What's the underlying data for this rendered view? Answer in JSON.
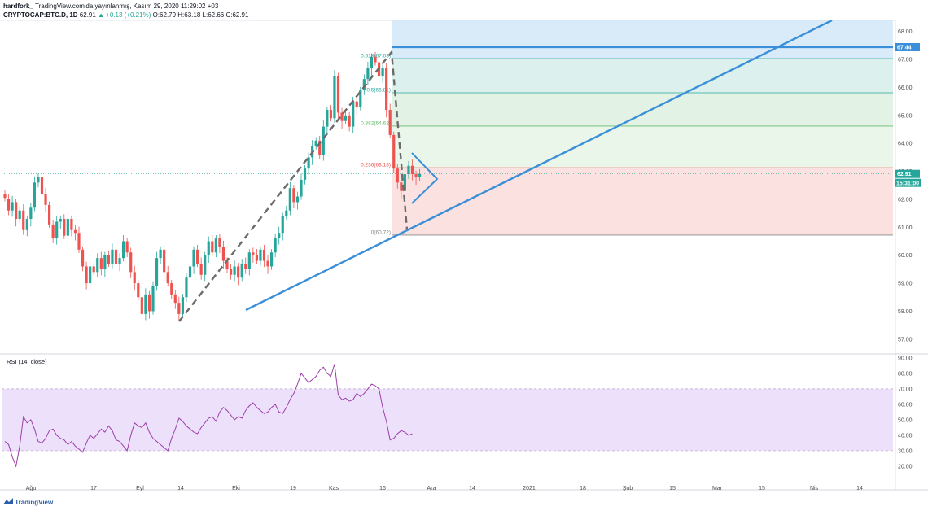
{
  "header": {
    "publisher": "hardfork_",
    "published_text": "TradingView.com'da yayınlanmış, Kasım 29, 2020 11:29:02 +03",
    "symbol": "CRYPTOCAP:BTC.D, 1D",
    "last": "62.91",
    "change": "▲ +0.13 (+0.21%)",
    "ohlc": "O:62.79 H:63.18 L:62.66 C:62.91"
  },
  "footer": {
    "brand": "TradingView"
  },
  "colors": {
    "up": "#26a69a",
    "down": "#ef5350",
    "trendline": "#3b8fd8",
    "dash": "#6b6b6b",
    "rsi": "#9c3fa8",
    "rsi_band": "#ede0fb"
  },
  "chart_data": [
    {
      "type": "candlestick",
      "ylim": [
        56.5,
        68.4
      ],
      "price_ticks": [
        "57.00",
        "58.00",
        "59.00",
        "60.00",
        "61.00",
        "62.00",
        "63.00",
        "64.00",
        "65.00",
        "66.00",
        "67.00",
        "68.00"
      ],
      "x_ticks": [
        "Ağu",
        "17",
        "Eyl",
        "14",
        "Eki",
        "19",
        "Kas",
        "16",
        "Ara",
        "14",
        "2021",
        "18",
        "Şub",
        "15",
        "Mar",
        "15",
        "Nis",
        "14"
      ],
      "last_price_label": "62.91",
      "countdown_label": "15:31:00",
      "level_label": "67.44",
      "fib": {
        "levels": [
          {
            "label": "0.618(67.03)",
            "value": 67.03
          },
          {
            "label": "0.5(65.81)",
            "value": 65.81
          },
          {
            "label": "0.382(64.62)",
            "value": 64.62
          },
          {
            "label": "0.236(63.13)",
            "value": 63.13
          },
          {
            "label": "0(60.72)",
            "value": 60.72
          }
        ]
      },
      "candles": [
        [
          62.2,
          62.05
        ],
        [
          62.0,
          61.6
        ],
        [
          61.6,
          61.9
        ],
        [
          61.9,
          61.3
        ],
        [
          61.3,
          61.6
        ],
        [
          61.6,
          60.9
        ],
        [
          60.9,
          61.3
        ],
        [
          61.3,
          61.7
        ],
        [
          61.7,
          62.6
        ],
        [
          62.6,
          62.8
        ],
        [
          62.8,
          62.2
        ],
        [
          62.2,
          61.8
        ],
        [
          61.8,
          61.1
        ],
        [
          61.1,
          60.6
        ],
        [
          60.6,
          61.2
        ],
        [
          61.2,
          61.3
        ],
        [
          61.3,
          60.7
        ],
        [
          60.7,
          61.3
        ],
        [
          61.3,
          60.9
        ],
        [
          60.9,
          60.8
        ],
        [
          60.8,
          60.2
        ],
        [
          60.2,
          59.6
        ],
        [
          59.6,
          59.0
        ],
        [
          59.0,
          59.6
        ],
        [
          59.6,
          59.4
        ],
        [
          59.4,
          59.9
        ],
        [
          59.9,
          59.5
        ],
        [
          59.5,
          60.0
        ],
        [
          60.0,
          59.7
        ],
        [
          59.7,
          60.2
        ],
        [
          60.2,
          59.7
        ],
        [
          59.7,
          59.9
        ],
        [
          59.9,
          60.5
        ],
        [
          60.5,
          60.1
        ],
        [
          60.1,
          59.4
        ],
        [
          59.4,
          59.0
        ],
        [
          59.0,
          58.5
        ],
        [
          58.5,
          57.9
        ],
        [
          57.9,
          58.6
        ],
        [
          58.6,
          58.0
        ],
        [
          58.0,
          58.9
        ],
        [
          58.9,
          59.9
        ],
        [
          59.9,
          60.2
        ],
        [
          60.2,
          59.4
        ],
        [
          59.4,
          59.0
        ],
        [
          59.0,
          58.6
        ],
        [
          58.6,
          58.3
        ],
        [
          58.3,
          57.9
        ],
        [
          57.9,
          58.5
        ],
        [
          58.5,
          59.2
        ],
        [
          59.2,
          59.6
        ],
        [
          59.6,
          60.2
        ],
        [
          60.2,
          59.7
        ],
        [
          59.7,
          59.3
        ],
        [
          59.3,
          60.0
        ],
        [
          60.0,
          60.5
        ],
        [
          60.5,
          60.1
        ],
        [
          60.1,
          60.6
        ],
        [
          60.6,
          60.3
        ],
        [
          60.3,
          59.8
        ],
        [
          59.8,
          59.5
        ],
        [
          59.5,
          59.3
        ],
        [
          59.3,
          59.6
        ],
        [
          59.6,
          59.2
        ],
        [
          59.2,
          59.7
        ],
        [
          59.7,
          59.5
        ],
        [
          59.5,
          60.1
        ],
        [
          60.1,
          60.0
        ],
        [
          60.0,
          59.8
        ],
        [
          59.8,
          60.2
        ],
        [
          60.2,
          59.8
        ],
        [
          59.8,
          59.6
        ],
        [
          59.6,
          60.1
        ],
        [
          60.1,
          60.6
        ],
        [
          60.6,
          60.8
        ],
        [
          60.8,
          61.4
        ],
        [
          61.4,
          61.6
        ],
        [
          61.6,
          62.4
        ],
        [
          62.4,
          61.9
        ],
        [
          61.9,
          62.1
        ],
        [
          62.1,
          62.7
        ],
        [
          62.7,
          63.1
        ],
        [
          63.1,
          63.5
        ],
        [
          63.5,
          63.9
        ],
        [
          63.9,
          64.1
        ],
        [
          64.1,
          63.6
        ],
        [
          63.6,
          64.6
        ],
        [
          64.6,
          65.2
        ],
        [
          65.2,
          64.9
        ],
        [
          64.9,
          66.4
        ],
        [
          66.4,
          65.1
        ],
        [
          65.1,
          64.8
        ],
        [
          64.8,
          65.0
        ],
        [
          65.0,
          64.6
        ],
        [
          64.6,
          65.5
        ],
        [
          65.5,
          65.3
        ],
        [
          65.3,
          65.9
        ],
        [
          65.9,
          66.3
        ],
        [
          66.3,
          66.7
        ],
        [
          66.7,
          67.1
        ],
        [
          67.1,
          66.9
        ],
        [
          66.9,
          66.4
        ],
        [
          66.4,
          66.7
        ],
        [
          66.7,
          65.2
        ],
        [
          65.2,
          64.3
        ],
        [
          64.3,
          63.1
        ],
        [
          63.1,
          62.6
        ],
        [
          62.6,
          62.3
        ],
        [
          62.3,
          62.9
        ],
        [
          62.9,
          63.2
        ],
        [
          63.2,
          62.9
        ],
        [
          62.9,
          62.79
        ],
        [
          62.79,
          62.91
        ]
      ],
      "rsi": {
        "label": "RSI (14, close)",
        "ylim": [
          10,
          92
        ],
        "ticks": [
          "20.00",
          "30.00",
          "40.00",
          "50.00",
          "60.00",
          "70.00",
          "80.00",
          "90.00"
        ],
        "band": [
          30,
          70
        ],
        "values": [
          36,
          34,
          26,
          20,
          33,
          52,
          48,
          50,
          44,
          36,
          35,
          38,
          43,
          44,
          40,
          38,
          37,
          34,
          36,
          33,
          31,
          29,
          35,
          40,
          38,
          41,
          44,
          42,
          46,
          43,
          37,
          36,
          33,
          30,
          40,
          48,
          46,
          45,
          48,
          42,
          38,
          36,
          34,
          32,
          30,
          38,
          44,
          51,
          49,
          46,
          44,
          42,
          41,
          45,
          48,
          51,
          52,
          49,
          55,
          58,
          56,
          53,
          50,
          52,
          51,
          56,
          59,
          61,
          58,
          56,
          54,
          55,
          58,
          60,
          55,
          54,
          58,
          63,
          67,
          73,
          80,
          77,
          74,
          76,
          78,
          82,
          84,
          80,
          78,
          86,
          66,
          63,
          64,
          62,
          63,
          67,
          65,
          67,
          70,
          73,
          72,
          70,
          58,
          49,
          37,
          38,
          41,
          43,
          42,
          40,
          41
        ]
      }
    }
  ]
}
